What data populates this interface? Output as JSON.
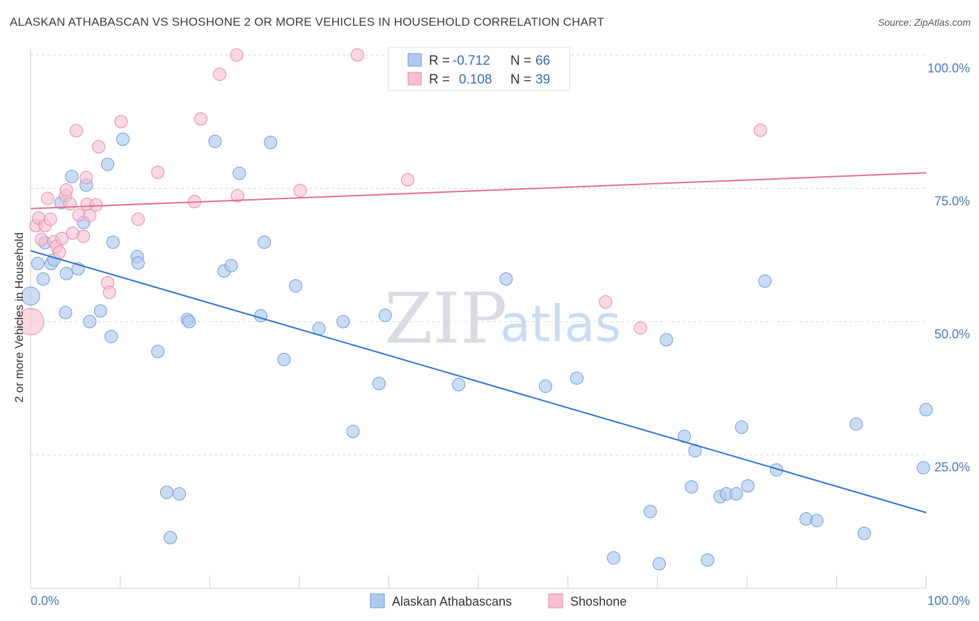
{
  "title": "ALASKAN ATHABASCAN VS SHOSHONE 2 OR MORE VEHICLES IN HOUSEHOLD CORRELATION CHART",
  "source": "Source: ZipAtlas.com",
  "watermark": {
    "zip": "ZIP",
    "atlas": "atlas"
  },
  "colors": {
    "blue_fill": "#aecbef",
    "blue_stroke": "#6f9ad8",
    "blue_line": "#2d72d2",
    "pink_fill": "#f7bfd0",
    "pink_stroke": "#e58aa8",
    "pink_line": "#e46d95",
    "grid": "#d8d8d8",
    "tick_text": "#4a78c2"
  },
  "legend": {
    "row1": {
      "r_label": "R =",
      "r_value": "-0.712",
      "n_label": "N =",
      "n_value": "66"
    },
    "row2": {
      "r_label": "R =",
      "r_value": "0.108",
      "n_label": "N =",
      "n_value": "39"
    }
  },
  "chart_data": {
    "type": "scatter",
    "title": "ALASKAN ATHABASCAN VS SHOSHONE 2 OR MORE VEHICLES IN HOUSEHOLD CORRELATION CHART",
    "xlabel": "",
    "ylabel": "2 or more Vehicles in Household",
    "xlim": [
      0,
      100
    ],
    "ylim": [
      0,
      100
    ],
    "x_tick_labels": [
      "0.0%",
      "100.0%"
    ],
    "y_tick_labels": [
      "25.0%",
      "50.0%",
      "75.0%",
      "100.0%"
    ],
    "y_ticks": [
      25,
      50,
      75,
      100
    ],
    "grid": "horizontal dashed",
    "legend_position": "bottom-center",
    "series": [
      {
        "name": "Alaskan Athabascans",
        "color": "#aecbef",
        "trend": {
          "x": [
            0,
            100
          ],
          "y": [
            63.3,
            14.2
          ]
        },
        "points": [
          [
            0.0,
            54.8
          ],
          [
            0.8,
            60.9
          ],
          [
            1.4,
            58.0
          ],
          [
            1.6,
            64.8
          ],
          [
            2.3,
            60.9
          ],
          [
            2.6,
            61.6
          ],
          [
            3.4,
            72.3
          ],
          [
            3.9,
            51.7
          ],
          [
            4.0,
            59.0
          ],
          [
            4.6,
            77.2
          ],
          [
            5.3,
            59.9
          ],
          [
            5.9,
            68.6
          ],
          [
            6.2,
            75.6
          ],
          [
            6.6,
            50.0
          ],
          [
            7.8,
            52.0
          ],
          [
            8.6,
            79.5
          ],
          [
            9.0,
            47.2
          ],
          [
            9.2,
            64.9
          ],
          [
            10.3,
            84.2
          ],
          [
            11.9,
            62.2
          ],
          [
            12.0,
            61.0
          ],
          [
            14.2,
            44.4
          ],
          [
            15.2,
            18.0
          ],
          [
            15.6,
            9.5
          ],
          [
            16.6,
            17.7
          ],
          [
            17.5,
            50.4
          ],
          [
            17.7,
            50.0
          ],
          [
            20.6,
            83.8
          ],
          [
            21.6,
            59.5
          ],
          [
            22.4,
            60.5
          ],
          [
            23.3,
            77.8
          ],
          [
            25.7,
            51.1
          ],
          [
            26.1,
            64.9
          ],
          [
            26.8,
            83.6
          ],
          [
            28.3,
            42.9
          ],
          [
            29.6,
            56.7
          ],
          [
            32.2,
            48.7
          ],
          [
            34.9,
            50.0
          ],
          [
            36.0,
            29.4
          ],
          [
            39.6,
            51.2
          ],
          [
            38.9,
            38.4
          ],
          [
            47.8,
            38.2
          ],
          [
            53.1,
            58.0
          ],
          [
            57.5,
            37.9
          ],
          [
            61.0,
            39.4
          ],
          [
            65.1,
            5.7
          ],
          [
            69.2,
            14.4
          ],
          [
            70.2,
            4.6
          ],
          [
            71.0,
            46.6
          ],
          [
            73.0,
            28.5
          ],
          [
            73.8,
            19.0
          ],
          [
            74.2,
            25.8
          ],
          [
            75.6,
            5.3
          ],
          [
            77.0,
            17.2
          ],
          [
            77.7,
            17.7
          ],
          [
            78.8,
            17.7
          ],
          [
            79.4,
            30.2
          ],
          [
            80.1,
            19.2
          ],
          [
            82.0,
            57.6
          ],
          [
            83.3,
            22.2
          ],
          [
            86.6,
            13.0
          ],
          [
            87.8,
            12.7
          ],
          [
            92.2,
            30.8
          ],
          [
            93.1,
            10.3
          ],
          [
            99.7,
            22.6
          ],
          [
            100.0,
            33.5
          ]
        ]
      },
      {
        "name": "Shoshone",
        "color": "#f7bfd0",
        "trend": {
          "x": [
            0,
            100
          ],
          "y": [
            71.2,
            77.9
          ]
        },
        "points": [
          [
            0.0,
            50.0
          ],
          [
            0.6,
            68.0
          ],
          [
            0.9,
            69.4
          ],
          [
            1.2,
            65.4
          ],
          [
            1.6,
            68.0
          ],
          [
            1.9,
            73.1
          ],
          [
            2.2,
            69.2
          ],
          [
            2.6,
            65.0
          ],
          [
            2.9,
            64.1
          ],
          [
            3.2,
            63.0
          ],
          [
            3.5,
            65.6
          ],
          [
            3.9,
            73.6
          ],
          [
            4.0,
            74.7
          ],
          [
            4.4,
            72.1
          ],
          [
            4.7,
            66.6
          ],
          [
            5.1,
            85.8
          ],
          [
            5.4,
            70.0
          ],
          [
            5.9,
            66.0
          ],
          [
            6.3,
            72.0
          ],
          [
            6.2,
            77.0
          ],
          [
            6.6,
            69.9
          ],
          [
            7.3,
            71.9
          ],
          [
            7.6,
            82.8
          ],
          [
            8.6,
            57.3
          ],
          [
            8.8,
            55.5
          ],
          [
            10.1,
            87.5
          ],
          [
            12.0,
            69.2
          ],
          [
            14.2,
            78.0
          ],
          [
            18.3,
            72.5
          ],
          [
            19.0,
            88.0
          ],
          [
            21.1,
            96.4
          ],
          [
            23.0,
            100.0
          ],
          [
            23.1,
            73.6
          ],
          [
            30.1,
            74.6
          ],
          [
            36.5,
            100.0
          ],
          [
            42.1,
            76.6
          ],
          [
            64.2,
            53.7
          ],
          [
            68.1,
            48.8
          ],
          [
            81.5,
            85.9
          ]
        ]
      }
    ]
  }
}
